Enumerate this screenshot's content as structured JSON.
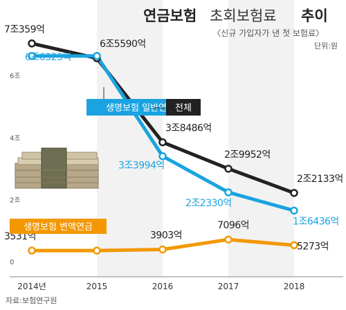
{
  "title": {
    "bold": "연금보험",
    "light": "초회보험료",
    "bold2": "추이"
  },
  "subtitle": "〈신규 가입자가 낸 첫 보험료〉",
  "unit": "단위:원",
  "source": "자료:보험연구원",
  "chart_data": {
    "type": "line",
    "x": [
      "2014년",
      "2015",
      "2016",
      "2017",
      "2018"
    ],
    "ylim": [
      0,
      7.5
    ],
    "yticks": [
      {
        "value": 6,
        "label": "6조"
      },
      {
        "value": 4,
        "label": "4조"
      },
      {
        "value": 2,
        "label": "2조"
      },
      {
        "value": 0,
        "label": "0"
      }
    ],
    "grid": false,
    "series": [
      {
        "name": "전체",
        "color": "#222222",
        "values": [
          7.0359,
          6.559,
          3.8486,
          2.9952,
          2.2133
        ],
        "labels": [
          "7조359억",
          "6조5590억",
          "3조8486억",
          "2조9952억",
          "2조2133억"
        ]
      },
      {
        "name": "생명보험 일반연금",
        "color": "#1aa3e0",
        "values": [
          6.6323,
          6.6323,
          3.3994,
          2.233,
          1.6436
        ],
        "labels": [
          "",
          "6조6323억",
          "3조3994억",
          "2조2330억",
          "1조6436억"
        ]
      },
      {
        "name": "생명보험 변액연금",
        "color": "#f39800",
        "values": [
          0.3531,
          0.3531,
          0.3903,
          0.7096,
          0.5273
        ],
        "labels": [
          "3531억",
          "",
          "3903억",
          "7096억",
          "5273억"
        ]
      }
    ]
  }
}
